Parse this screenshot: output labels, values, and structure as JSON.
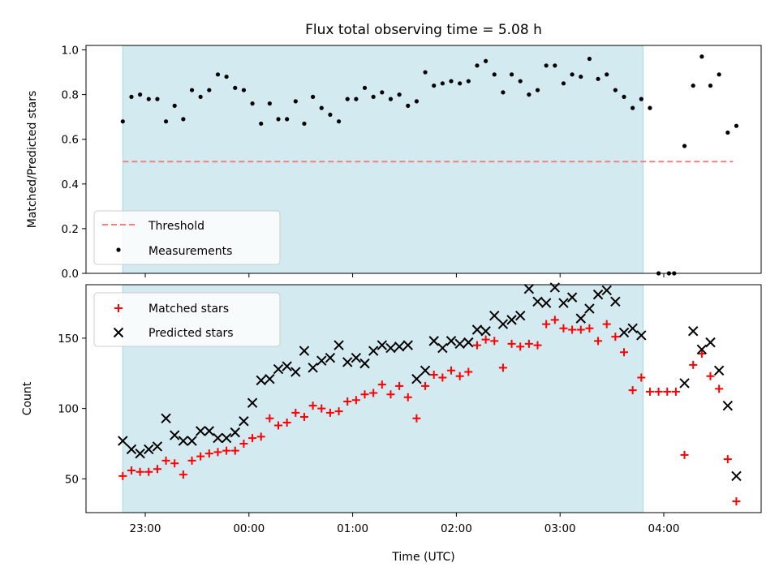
{
  "title": "Flux total observing time = 5.08 h",
  "xlabel": "Time (UTC)",
  "colors": {
    "shade": "#d4eaf1",
    "shade_edge": "#a9d6e2",
    "threshold": "#f08080",
    "matched": "#ff0000",
    "predicted": "#000000",
    "points": "#000000"
  },
  "chart_data": [
    {
      "type": "scatter",
      "ylabel": "Matched/Predicted stars",
      "ylim": [
        0,
        1.02
      ],
      "yticks": [
        0.0,
        0.2,
        0.4,
        0.6,
        0.8,
        1.0
      ],
      "ytick_labels": [
        "0.0",
        "0.2",
        "0.4",
        "0.6",
        "0.8",
        "1.0"
      ],
      "shaded_x": [
        "22:47",
        "03:48"
      ],
      "threshold": {
        "name": "Threshold",
        "y": 0.5,
        "x": [
          "22:47",
          "04:40"
        ]
      },
      "series": [
        {
          "name": "Measurements",
          "points": [
            [
              "22:47",
              0.68
            ],
            [
              "22:52",
              0.79
            ],
            [
              "22:57",
              0.8
            ],
            [
              "23:02",
              0.78
            ],
            [
              "23:07",
              0.78
            ],
            [
              "23:12",
              0.68
            ],
            [
              "23:17",
              0.75
            ],
            [
              "23:22",
              0.69
            ],
            [
              "23:27",
              0.82
            ],
            [
              "23:32",
              0.79
            ],
            [
              "23:37",
              0.82
            ],
            [
              "23:42",
              0.89
            ],
            [
              "23:47",
              0.88
            ],
            [
              "23:52",
              0.83
            ],
            [
              "23:57",
              0.82
            ],
            [
              "00:02",
              0.76
            ],
            [
              "00:07",
              0.67
            ],
            [
              "00:12",
              0.76
            ],
            [
              "00:17",
              0.69
            ],
            [
              "00:22",
              0.69
            ],
            [
              "00:27",
              0.77
            ],
            [
              "00:32",
              0.67
            ],
            [
              "00:37",
              0.79
            ],
            [
              "00:42",
              0.74
            ],
            [
              "00:47",
              0.71
            ],
            [
              "00:52",
              0.68
            ],
            [
              "00:57",
              0.78
            ],
            [
              "01:02",
              0.78
            ],
            [
              "01:07",
              0.83
            ],
            [
              "01:12",
              0.79
            ],
            [
              "01:17",
              0.81
            ],
            [
              "01:22",
              0.78
            ],
            [
              "01:27",
              0.8
            ],
            [
              "01:32",
              0.75
            ],
            [
              "01:37",
              0.77
            ],
            [
              "01:42",
              0.9
            ],
            [
              "01:47",
              0.84
            ],
            [
              "01:52",
              0.85
            ],
            [
              "01:57",
              0.86
            ],
            [
              "02:02",
              0.85
            ],
            [
              "02:07",
              0.86
            ],
            [
              "02:12",
              0.93
            ],
            [
              "02:17",
              0.95
            ],
            [
              "02:22",
              0.89
            ],
            [
              "02:27",
              0.81
            ],
            [
              "02:32",
              0.89
            ],
            [
              "02:37",
              0.86
            ],
            [
              "02:42",
              0.8
            ],
            [
              "02:47",
              0.82
            ],
            [
              "02:52",
              0.93
            ],
            [
              "02:57",
              0.93
            ],
            [
              "03:02",
              0.85
            ],
            [
              "03:07",
              0.89
            ],
            [
              "03:12",
              0.88
            ],
            [
              "03:17",
              0.96
            ],
            [
              "03:22",
              0.87
            ],
            [
              "03:27",
              0.89
            ],
            [
              "03:32",
              0.82
            ],
            [
              "03:37",
              0.79
            ],
            [
              "03:42",
              0.74
            ],
            [
              "03:47",
              0.78
            ],
            [
              "03:52",
              0.74
            ],
            [
              "03:57",
              0.0
            ],
            [
              "04:03",
              0.0
            ],
            [
              "04:06",
              0.0
            ],
            [
              "04:12",
              0.57
            ],
            [
              "04:17",
              0.84
            ],
            [
              "04:22",
              0.97
            ],
            [
              "04:27",
              0.84
            ],
            [
              "04:32",
              0.89
            ],
            [
              "04:37",
              0.63
            ],
            [
              "04:42",
              0.66
            ]
          ]
        }
      ],
      "legend": [
        "Threshold",
        "Measurements"
      ]
    },
    {
      "type": "scatter",
      "ylabel": "Count",
      "ylim": [
        26,
        188
      ],
      "yticks": [
        50,
        100,
        150
      ],
      "ytick_labels": [
        "50",
        "100",
        "150"
      ],
      "xticks": [
        "23:00",
        "00:00",
        "01:00",
        "02:00",
        "03:00",
        "04:00"
      ],
      "xlim": [
        "22:30",
        "04:55"
      ],
      "shaded_x": [
        "22:47",
        "03:48"
      ],
      "series": [
        {
          "name": "Matched stars",
          "marker": "plus",
          "points": [
            [
              "22:47",
              52
            ],
            [
              "22:52",
              56
            ],
            [
              "22:57",
              55
            ],
            [
              "23:02",
              55
            ],
            [
              "23:07",
              57
            ],
            [
              "23:12",
              63
            ],
            [
              "23:17",
              61
            ],
            [
              "23:22",
              53
            ],
            [
              "23:27",
              63
            ],
            [
              "23:32",
              66
            ],
            [
              "23:37",
              68
            ],
            [
              "23:42",
              69
            ],
            [
              "23:47",
              70
            ],
            [
              "23:52",
              70
            ],
            [
              "23:57",
              75
            ],
            [
              "00:02",
              79
            ],
            [
              "00:07",
              80
            ],
            [
              "00:12",
              93
            ],
            [
              "00:17",
              88
            ],
            [
              "00:22",
              90
            ],
            [
              "00:27",
              97
            ],
            [
              "00:32",
              94
            ],
            [
              "00:37",
              102
            ],
            [
              "00:42",
              100
            ],
            [
              "00:47",
              97
            ],
            [
              "00:52",
              98
            ],
            [
              "00:57",
              105
            ],
            [
              "01:02",
              106
            ],
            [
              "01:07",
              110
            ],
            [
              "01:12",
              111
            ],
            [
              "01:17",
              117
            ],
            [
              "01:22",
              110
            ],
            [
              "01:27",
              116
            ],
            [
              "01:32",
              108
            ],
            [
              "01:37",
              93
            ],
            [
              "01:42",
              116
            ],
            [
              "01:47",
              124
            ],
            [
              "01:52",
              122
            ],
            [
              "01:57",
              127
            ],
            [
              "02:02",
              123
            ],
            [
              "02:07",
              126
            ],
            [
              "02:12",
              145
            ],
            [
              "02:17",
              149
            ],
            [
              "02:22",
              148
            ],
            [
              "02:27",
              129
            ],
            [
              "02:32",
              146
            ],
            [
              "02:37",
              144
            ],
            [
              "02:42",
              146
            ],
            [
              "02:47",
              145
            ],
            [
              "02:52",
              160
            ],
            [
              "02:57",
              163
            ],
            [
              "03:02",
              157
            ],
            [
              "03:07",
              156
            ],
            [
              "03:12",
              156
            ],
            [
              "03:17",
              157
            ],
            [
              "03:22",
              148
            ],
            [
              "03:27",
              160
            ],
            [
              "03:32",
              151
            ],
            [
              "03:37",
              140
            ],
            [
              "03:42",
              113
            ],
            [
              "03:47",
              122
            ],
            [
              "03:52",
              112
            ],
            [
              "03:57",
              112
            ],
            [
              "04:02",
              112
            ],
            [
              "04:07",
              112
            ],
            [
              "04:12",
              67
            ],
            [
              "04:17",
              131
            ],
            [
              "04:22",
              139
            ],
            [
              "04:27",
              123
            ],
            [
              "04:32",
              114
            ],
            [
              "04:37",
              64
            ],
            [
              "04:42",
              34
            ]
          ]
        },
        {
          "name": "Predicted stars",
          "marker": "x",
          "points": [
            [
              "22:47",
              77
            ],
            [
              "22:52",
              71
            ],
            [
              "22:57",
              68
            ],
            [
              "23:02",
              71
            ],
            [
              "23:07",
              73
            ],
            [
              "23:12",
              93
            ],
            [
              "23:17",
              81
            ],
            [
              "23:22",
              77
            ],
            [
              "23:27",
              77
            ],
            [
              "23:32",
              84
            ],
            [
              "23:37",
              84
            ],
            [
              "23:42",
              79
            ],
            [
              "23:47",
              79
            ],
            [
              "23:52",
              83
            ],
            [
              "23:57",
              91
            ],
            [
              "00:02",
              104
            ],
            [
              "00:07",
              120
            ],
            [
              "00:12",
              121
            ],
            [
              "00:17",
              128
            ],
            [
              "00:22",
              130
            ],
            [
              "00:27",
              126
            ],
            [
              "00:32",
              141
            ],
            [
              "00:37",
              129
            ],
            [
              "00:42",
              134
            ],
            [
              "00:47",
              136
            ],
            [
              "00:52",
              145
            ],
            [
              "00:57",
              133
            ],
            [
              "01:02",
              136
            ],
            [
              "01:07",
              132
            ],
            [
              "01:12",
              141
            ],
            [
              "01:17",
              145
            ],
            [
              "01:22",
              143
            ],
            [
              "01:27",
              144
            ],
            [
              "01:32",
              145
            ],
            [
              "01:37",
              121
            ],
            [
              "01:42",
              127
            ],
            [
              "01:47",
              148
            ],
            [
              "01:52",
              143
            ],
            [
              "01:57",
              148
            ],
            [
              "02:02",
              146
            ],
            [
              "02:07",
              147
            ],
            [
              "02:12",
              156
            ],
            [
              "02:17",
              155
            ],
            [
              "02:22",
              166
            ],
            [
              "02:27",
              160
            ],
            [
              "02:32",
              163
            ],
            [
              "02:37",
              166
            ],
            [
              "02:42",
              185
            ],
            [
              "02:47",
              176
            ],
            [
              "02:52",
              175
            ],
            [
              "02:57",
              186
            ],
            [
              "03:02",
              175
            ],
            [
              "03:07",
              179
            ],
            [
              "03:12",
              164
            ],
            [
              "03:17",
              171
            ],
            [
              "03:22",
              181
            ],
            [
              "03:27",
              184
            ],
            [
              "03:32",
              176
            ],
            [
              "03:37",
              154
            ],
            [
              "03:42",
              157
            ],
            [
              "03:47",
              152
            ],
            [
              "04:12",
              118
            ],
            [
              "04:17",
              155
            ],
            [
              "04:22",
              142
            ],
            [
              "04:27",
              147
            ],
            [
              "04:32",
              127
            ],
            [
              "04:37",
              102
            ],
            [
              "04:42",
              52
            ]
          ]
        }
      ],
      "legend": [
        "Matched stars",
        "Predicted stars"
      ]
    }
  ]
}
